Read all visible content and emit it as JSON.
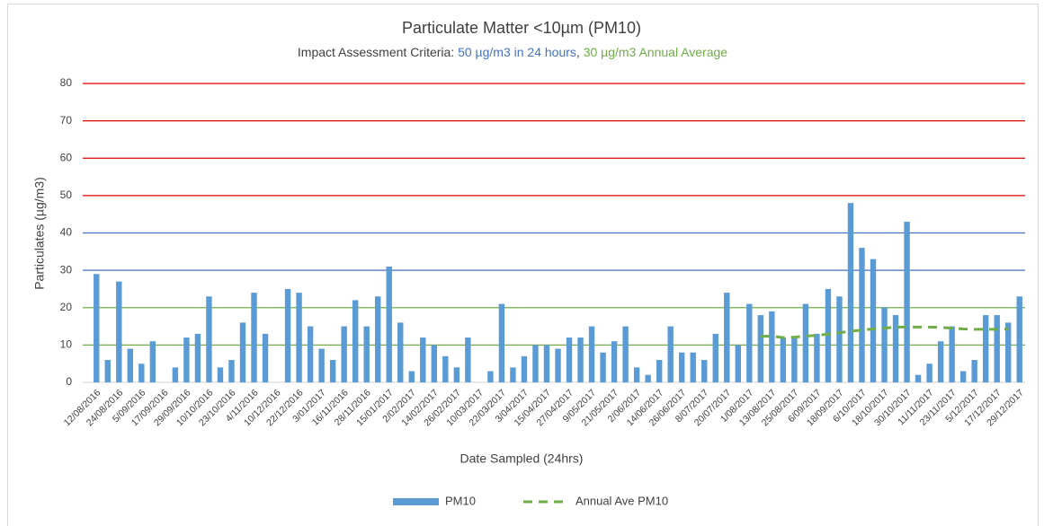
{
  "chart_data": {
    "type": "bar",
    "title": "Particulate Matter <10µm (PM10)",
    "subtitle_parts": [
      {
        "text": "Impact Assessment Criteria: ",
        "color": "#404040"
      },
      {
        "text": "50 µg/m3 in 24 hours",
        "color": "#4472c4"
      },
      {
        "text": ", ",
        "color": "#404040"
      },
      {
        "text": "30 µg/m3 Annual Average",
        "color": "#70ad47"
      }
    ],
    "x_label": "Date Sampled (24hrs)",
    "y_label": "Particulates (µg/m3)",
    "categories": [
      "12/08/2016",
      null,
      "24/08/2016",
      null,
      "5/09/2016",
      null,
      "17/09/2016",
      null,
      "29/09/2016",
      null,
      "10/10/2016",
      null,
      "23/10/2016",
      null,
      "4/11/2016",
      null,
      "10/12/2016",
      null,
      "22/12/2016",
      null,
      "3/01/2017",
      null,
      "16/11/2016",
      null,
      "28/11/2016",
      null,
      "15/01/2017",
      null,
      "2/02/2017",
      null,
      "14/02/2017",
      null,
      "26/02/2017",
      null,
      "10/03/2017",
      null,
      "22/03/2017",
      null,
      "3/04/2017",
      null,
      "15/04/2017",
      null,
      "27/04/2017",
      null,
      "9/05/2017",
      null,
      "21/05/2017",
      null,
      "2/06/2017",
      null,
      "14/06/2017",
      null,
      "26/06/2017",
      null,
      "8/07/2017",
      null,
      "20/07/2017",
      null,
      "1/08/2017",
      null,
      "13/08/2017",
      null,
      "25/08/2017",
      null,
      "6/09/2017",
      null,
      "18/09/2017",
      null,
      "6/10/2017",
      null,
      "18/10/2017",
      null,
      "30/10/2017",
      null,
      "11/11/2017",
      null,
      "23/11/2017",
      null,
      "5/12/2017",
      null,
      "17/12/2017",
      null,
      "29/12/2017"
    ],
    "series": [
      {
        "name": "PM10",
        "type": "bar",
        "color": "#5b9bd5",
        "values": [
          29,
          6,
          27,
          9,
          5,
          11,
          null,
          4,
          12,
          13,
          23,
          4,
          6,
          16,
          24,
          13,
          null,
          25,
          24,
          15,
          9,
          6,
          15,
          22,
          15,
          23,
          31,
          16,
          3,
          12,
          10,
          7,
          4,
          12,
          null,
          3,
          21,
          4,
          7,
          10,
          10,
          9,
          12,
          12,
          15,
          8,
          11,
          15,
          4,
          2,
          6,
          15,
          8,
          8,
          6,
          13,
          24,
          10,
          21,
          18,
          19,
          12,
          12,
          21,
          13,
          25,
          23,
          48,
          36,
          33,
          20,
          18,
          43,
          2,
          5,
          11,
          15,
          3,
          6,
          18,
          18,
          16,
          23
        ]
      },
      {
        "name": "Annual Ave PM10",
        "type": "line",
        "dashed": true,
        "color": "#70ad47",
        "values": [
          null,
          null,
          null,
          null,
          null,
          null,
          null,
          null,
          null,
          null,
          null,
          null,
          null,
          null,
          null,
          null,
          null,
          null,
          null,
          null,
          null,
          null,
          null,
          null,
          null,
          null,
          null,
          null,
          null,
          null,
          null,
          null,
          null,
          null,
          null,
          null,
          null,
          null,
          null,
          null,
          null,
          null,
          null,
          null,
          null,
          null,
          null,
          null,
          null,
          null,
          null,
          null,
          null,
          null,
          null,
          null,
          null,
          null,
          null,
          12.3,
          12.4,
          12.0,
          12.1,
          12.4,
          12.6,
          12.9,
          13.3,
          13.7,
          14.0,
          14.3,
          14.5,
          14.8,
          14.8,
          14.8,
          14.8,
          14.7,
          14.5,
          14.3,
          14.2,
          14.2,
          14.2,
          14.3,
          null
        ]
      }
    ],
    "ylim": [
      0,
      80
    ],
    "yticks": [
      0,
      10,
      20,
      30,
      40,
      50,
      60,
      70,
      80
    ],
    "grid": true,
    "grid_colors": [
      "#d9d9d9",
      "#70ad47",
      "#70ad47",
      "#4472c4",
      "#4472c4",
      "#e00000",
      "#e00000",
      "#e00000",
      "#e00000"
    ],
    "legend": "bottom"
  }
}
